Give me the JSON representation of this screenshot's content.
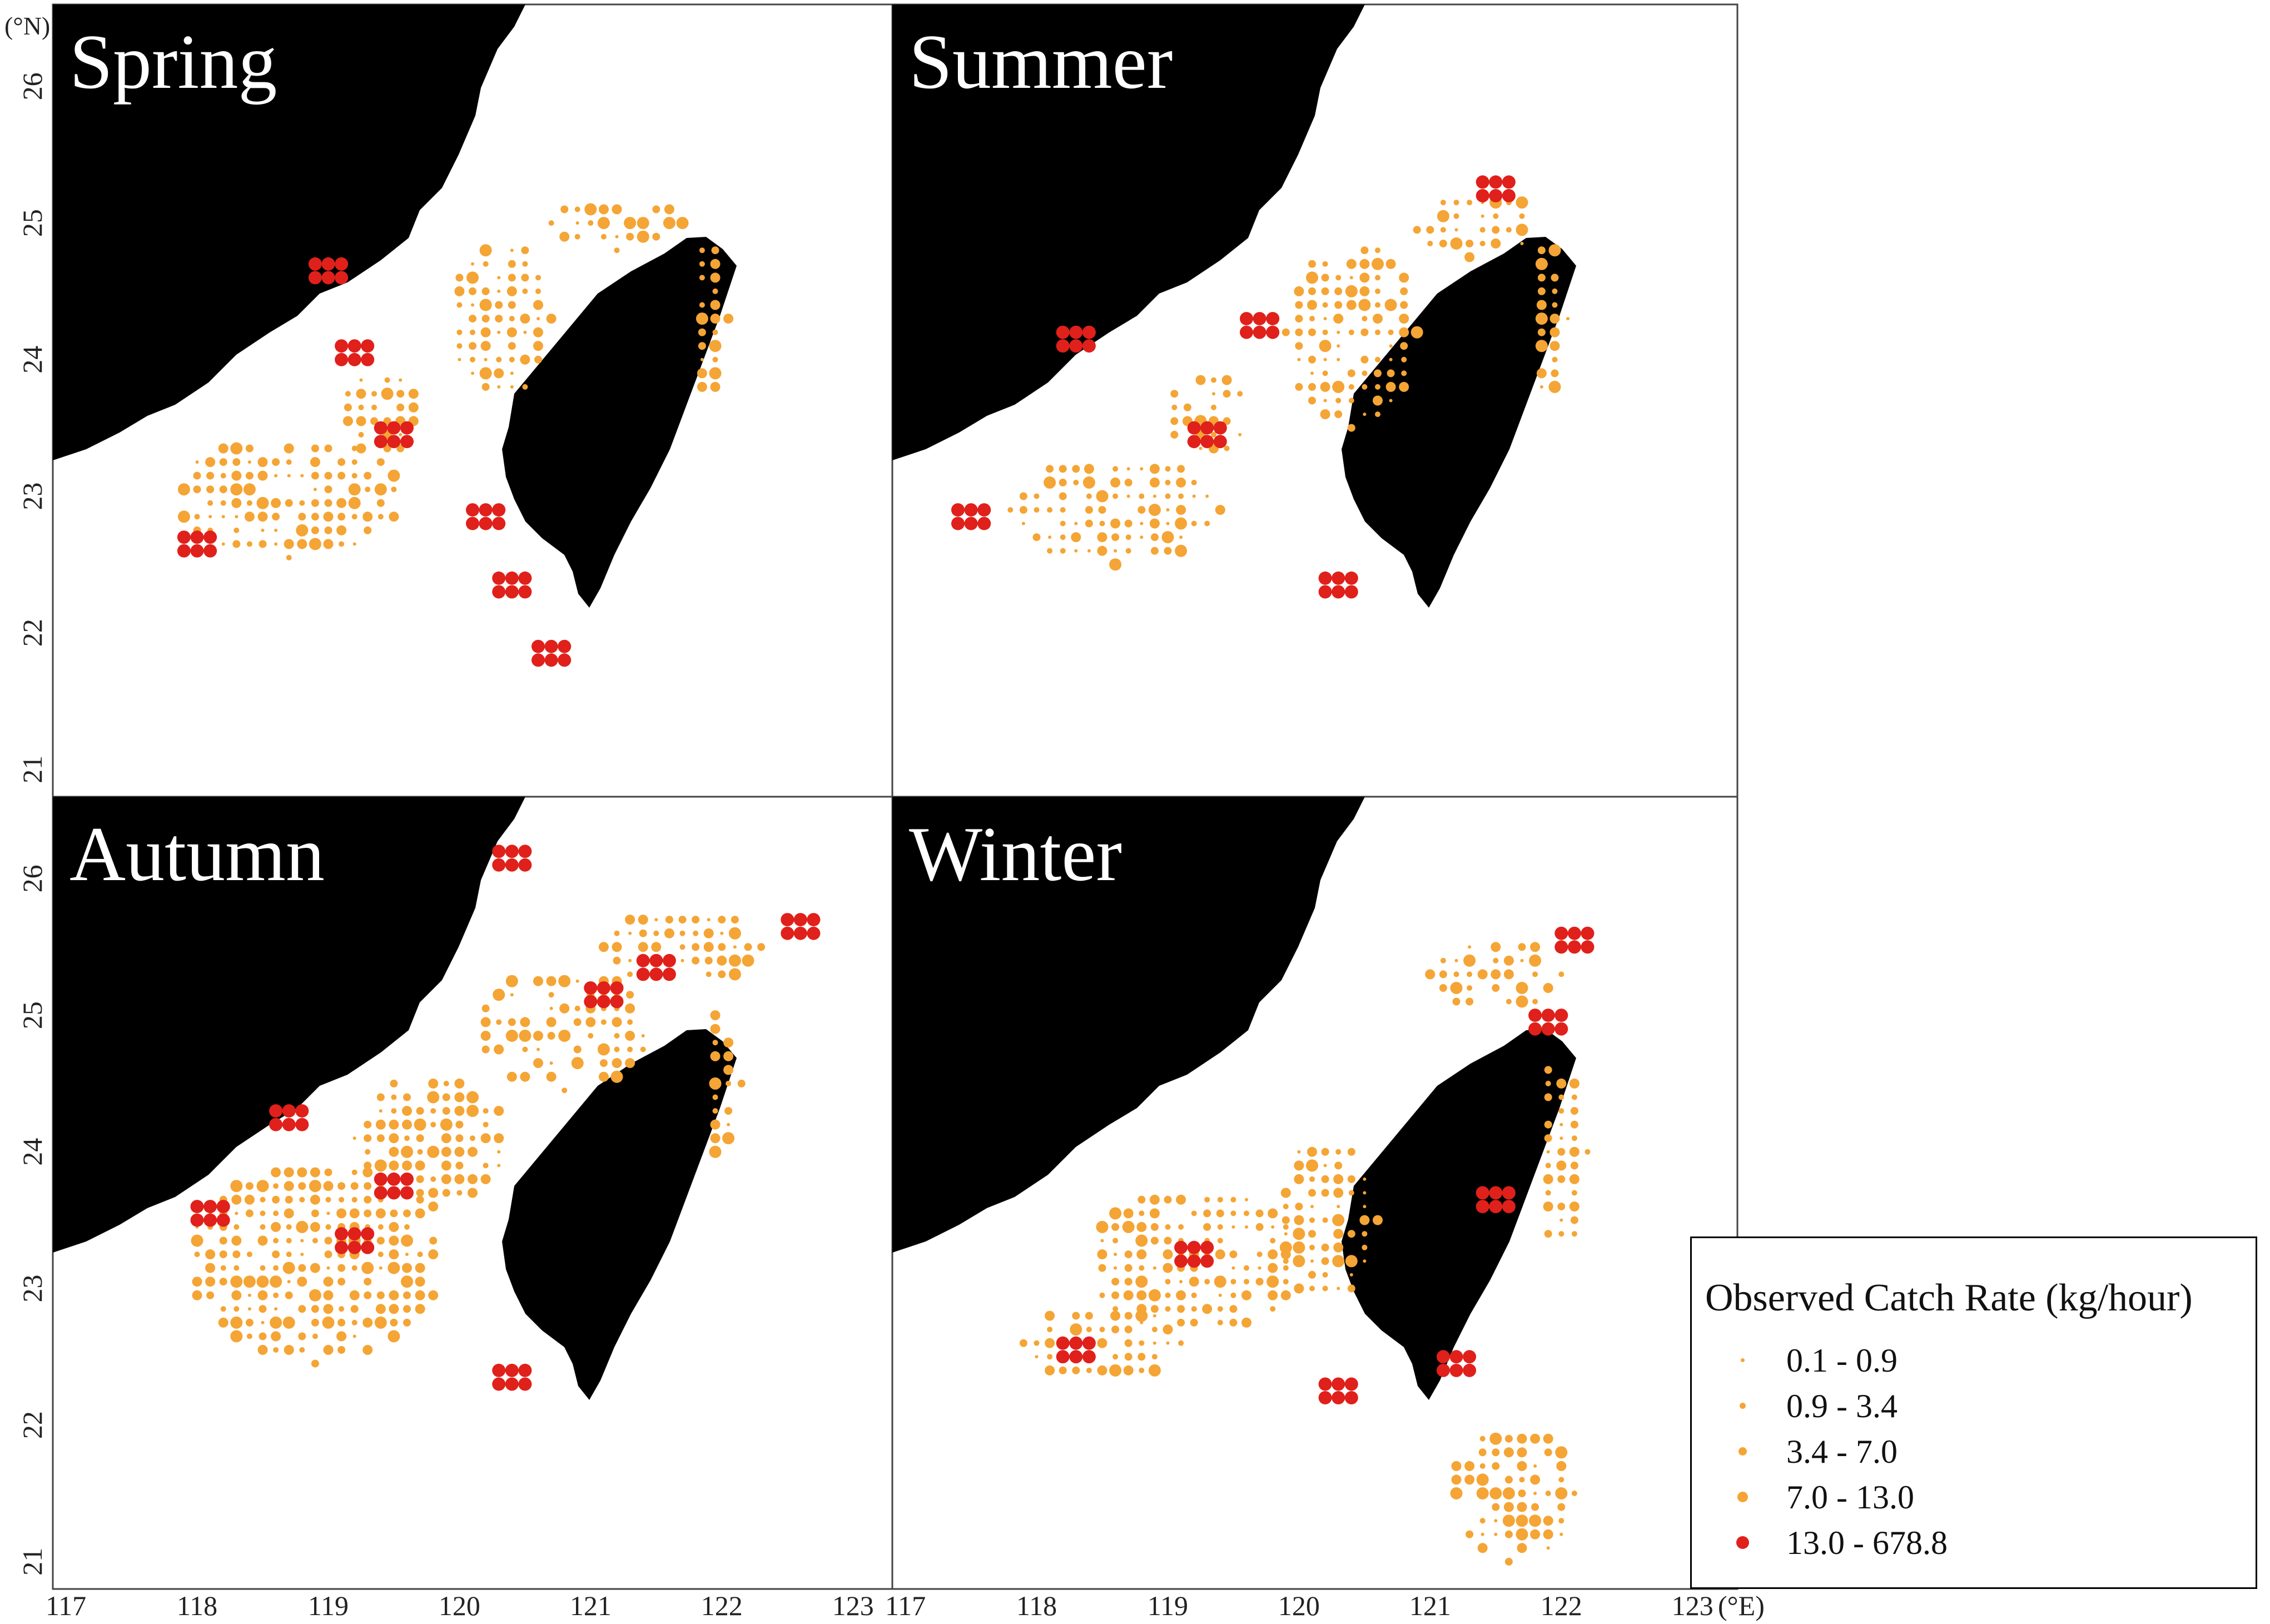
{
  "axis": {
    "lat_unit": "(°N)",
    "lon_unit": "(°E)",
    "lat_ticks": [
      "26",
      "25",
      "24",
      "23",
      "22",
      "21"
    ],
    "lon_ticks_left": [
      "117",
      "118",
      "119",
      "120",
      "121",
      "122",
      "123"
    ],
    "lon_ticks_right": [
      "117",
      "118",
      "119",
      "120",
      "121",
      "122",
      "123"
    ]
  },
  "panels": [
    {
      "key": "spring",
      "label": "Spring"
    },
    {
      "key": "summer",
      "label": "Summer"
    },
    {
      "key": "autumn",
      "label": "Autumn"
    },
    {
      "key": "winter",
      "label": "Winter"
    }
  ],
  "legend": {
    "title": "Observed Catch Rate (kg/hour)",
    "classes": [
      {
        "label": "0.1 - 0.9",
        "color": "#f4a535"
      },
      {
        "label": "0.9 - 3.4",
        "color": "#f4a535"
      },
      {
        "label": "3.4 - 7.0",
        "color": "#f4a535"
      },
      {
        "label": "7.0 - 13.0",
        "color": "#f4a535"
      },
      {
        "label": "13.0 - 678.8",
        "color": "#e0201b"
      }
    ]
  },
  "colors": {
    "land": "#000000",
    "sea": "#ffffff",
    "catch_low": "#f4a535",
    "catch_high": "#e0201b"
  },
  "chart_data": {
    "type": "scatter",
    "lon_range": [
      116.9,
      123.3
    ],
    "lat_range": [
      20.8,
      26.6
    ],
    "grid_step_deg": 0.1,
    "seasons": [
      {
        "name": "Spring",
        "hotspots_red": [
          [
            119.5,
            23.5
          ],
          [
            118.0,
            22.7
          ],
          [
            119.2,
            24.1
          ],
          [
            119.0,
            24.7
          ],
          [
            120.2,
            22.9
          ],
          [
            120.4,
            22.4
          ],
          [
            120.7,
            21.9
          ]
        ]
      },
      {
        "name": "Summer",
        "hotspots_red": [
          [
            119.3,
            23.5
          ],
          [
            117.5,
            22.9
          ],
          [
            118.3,
            24.2
          ],
          [
            119.7,
            24.3
          ],
          [
            121.5,
            25.3
          ],
          [
            120.3,
            22.4
          ]
        ]
      },
      {
        "name": "Autumn",
        "hotspots_red": [
          [
            119.2,
            23.4
          ],
          [
            118.1,
            23.6
          ],
          [
            118.7,
            24.3
          ],
          [
            119.5,
            23.8
          ],
          [
            121.1,
            25.2
          ],
          [
            121.5,
            25.4
          ],
          [
            120.4,
            22.4
          ],
          [
            122.6,
            25.7
          ],
          [
            120.4,
            26.2
          ]
        ]
      },
      {
        "name": "Winter",
        "hotspots_red": [
          [
            119.2,
            23.3
          ],
          [
            118.3,
            22.6
          ],
          [
            120.3,
            22.3
          ],
          [
            121.2,
            22.5
          ],
          [
            121.9,
            25.0
          ],
          [
            122.1,
            25.6
          ],
          [
            121.5,
            23.7
          ]
        ]
      }
    ]
  }
}
